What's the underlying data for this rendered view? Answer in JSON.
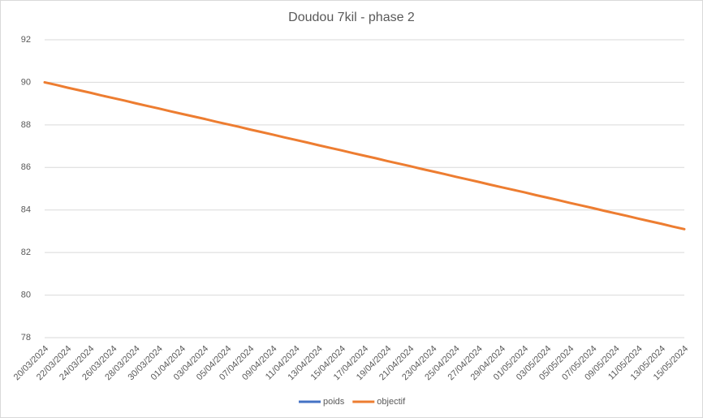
{
  "chart_data": {
    "type": "line",
    "title": "Doudou 7kil - phase 2",
    "categories": [
      "20/03/2024",
      null,
      "22/03/2024",
      null,
      "24/03/2024",
      null,
      "26/03/2024",
      null,
      "28/03/2024",
      null,
      "30/03/2024",
      null,
      "01/04/2024",
      null,
      "03/04/2024",
      null,
      "05/04/2024",
      null,
      "07/04/2024",
      null,
      "09/04/2024",
      null,
      "11/04/2024",
      null,
      "13/04/2024",
      null,
      "15/04/2024",
      null,
      "17/04/2024",
      null,
      "19/04/2024",
      null,
      "21/04/2024",
      null,
      "23/04/2024",
      null,
      "25/04/2024",
      null,
      "27/04/2024",
      null,
      "29/04/2024",
      null,
      "01/05/2024",
      null,
      "03/05/2024",
      null,
      "05/05/2024",
      null,
      "07/05/2024",
      null,
      "09/05/2024",
      null,
      "11/05/2024",
      null,
      "13/05/2024",
      null,
      "15/05/2024"
    ],
    "series": [
      {
        "name": "poids",
        "color": "#4472c4",
        "values": [
          null,
          null,
          null,
          null,
          null,
          null,
          null,
          null,
          null,
          null,
          null,
          null,
          null,
          null,
          null,
          null,
          null,
          null,
          null,
          null,
          null,
          null,
          null,
          null,
          null,
          null,
          null,
          null,
          null,
          null,
          null,
          null,
          null,
          null,
          null,
          null,
          null,
          null,
          null,
          null,
          null,
          null,
          null,
          null,
          null,
          null,
          null,
          null,
          null,
          null,
          null,
          null,
          null,
          null,
          null,
          null,
          null
        ]
      },
      {
        "name": "objectif",
        "color": "#ed7d31",
        "values": [
          90,
          89.88,
          89.75,
          89.63,
          89.51,
          89.38,
          89.26,
          89.14,
          89.01,
          88.89,
          88.77,
          88.64,
          88.52,
          88.4,
          88.28,
          88.15,
          88.03,
          87.91,
          87.78,
          87.66,
          87.54,
          87.41,
          87.29,
          87.17,
          87.04,
          86.92,
          86.8,
          86.67,
          86.55,
          86.43,
          86.3,
          86.18,
          86.06,
          85.93,
          85.81,
          85.69,
          85.56,
          85.44,
          85.32,
          85.19,
          85.07,
          84.95,
          84.83,
          84.7,
          84.58,
          84.46,
          84.33,
          84.21,
          84.09,
          83.96,
          83.84,
          83.72,
          83.59,
          83.47,
          83.35,
          83.22,
          83.1
        ]
      }
    ],
    "ylim": [
      78,
      92
    ],
    "yticks": [
      78,
      80,
      82,
      84,
      86,
      88,
      90,
      92
    ],
    "grid": true,
    "legend": "bottom"
  }
}
